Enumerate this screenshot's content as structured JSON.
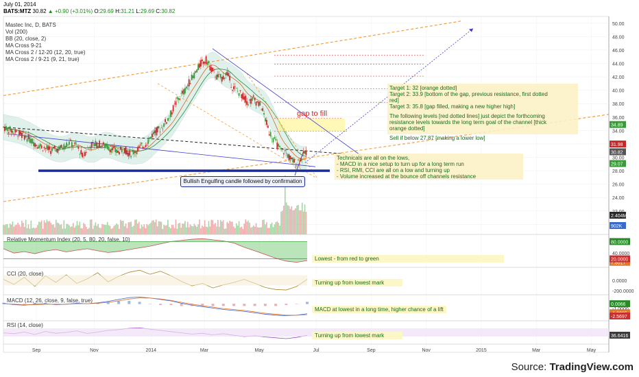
{
  "header": {
    "date": "July 01, 2014",
    "symbol": "BATS:MTZ",
    "last": "30.82",
    "change": "+0.90 (+3.01%)",
    "o_label": "O:",
    "o_value": "29.69",
    "h_label": "H:",
    "h_value": "31.21",
    "l_label": "L:",
    "l_value": "29.69",
    "c_label": "C:",
    "c_value": "30.82"
  },
  "indicators": [
    "Mastec Inc, D, BATS",
    "Vol (200)",
    "BB (20, close, 2)",
    "MA Cross 9-21",
    "MA Cross 2 / 12-20 (12, 20, true)",
    "MA Cross 2 / 9-21 (9, 21, true)"
  ],
  "targets_note": [
    "Target 1: 32 [orange dotted]",
    "Target 2: 33.9 [bottom of the gap, previous resistance, first dotted",
    "red]",
    "Target 3: 35.8 [gap filled, making a new higher high]",
    "",
    "The following levels [red dotted lines] just depict the forthcoming",
    "resistance levels towards the long term goal of the channel [thick",
    "orange dotted]",
    "",
    "Sell if below 27.87 [making a lower low]"
  ],
  "technicals_note": [
    "Technicals are all on the lows,",
    "- MACD in a nice setup to turn up for a long term run",
    "- RSI, RMI, CCI are all on a low and turning up",
    "- Volume increased at the bounce off channels resistance"
  ],
  "gap_label": "gap to fill",
  "bullish_label": "Bullish Engulfing candle followed by confirmation",
  "panels": {
    "rmi": "Relative Momentum Index (20, 5, 80, 20, false, 10)",
    "cci": "CCI (20, close)",
    "macd": "MACD (12, 26, close, 9, false, true)",
    "rsi": "RSI (14, close)"
  },
  "callouts": {
    "rmi": "Lowest - from red to green",
    "cci": "Turning up from lowest mark",
    "macd": "MACD at lowest in a long time, higher chance of a lift",
    "rsi": "Turning up from lowest mark"
  },
  "source": {
    "prefix": "Source: ",
    "brand": "TradingView.com"
  },
  "colors": {
    "up": "#3a9a3a",
    "down": "#c62828",
    "bb": "#a8d8c8",
    "channel": "#f29a2e",
    "resistance": "#e05050",
    "support": "#1a2a9a",
    "note_bg": "#fcf1c4",
    "rmi_fill": "#3ab53a"
  },
  "chart_data": [
    {
      "type": "candlestick",
      "title": "Mastec Inc, D, BATS",
      "x_ticks": [
        "Sep",
        "Nov",
        "2014",
        "Mar",
        "May",
        "Jul",
        "Sep",
        "Nov",
        "2015",
        "Mar",
        "May"
      ],
      "y_ticks": [
        "20.00",
        "22.00",
        "24.00",
        "26.00",
        "28.00",
        "30.00",
        "32.00",
        "34.00",
        "36.00",
        "38.00",
        "40.00",
        "42.00",
        "44.00",
        "46.00",
        "48.00",
        "50.00"
      ],
      "ylim": [
        18.5,
        51
      ],
      "price_tags": [
        {
          "label": "34.89",
          "color": "#3a9a3a"
        },
        {
          "label": "31.98",
          "color": "#c62828"
        },
        {
          "label": "30.82",
          "color": "#555555"
        },
        {
          "label": "29.07",
          "color": "#3a9a3a"
        }
      ],
      "volume_tags": [
        "2.404M",
        "902K"
      ],
      "key_levels": {
        "target_1": 32,
        "target_2": 33.9,
        "target_3": 35.8,
        "stop": 27.87,
        "resistance_levels": [
          38.2,
          40.2,
          42.1,
          43.9,
          45.2
        ]
      },
      "price_path": [
        [
          0,
          34.5
        ],
        [
          8,
          33.8
        ],
        [
          16,
          33.2
        ],
        [
          24,
          32.1
        ],
        [
          30,
          31.5
        ],
        [
          36,
          31.0
        ],
        [
          44,
          31.4
        ],
        [
          50,
          32.2
        ],
        [
          56,
          31.6
        ],
        [
          60,
          30.2
        ],
        [
          66,
          31.8
        ],
        [
          72,
          32.0
        ],
        [
          80,
          31.5
        ],
        [
          86,
          30.8
        ],
        [
          92,
          31.2
        ],
        [
          96,
          30.5
        ],
        [
          102,
          31.2
        ],
        [
          108,
          32.0
        ],
        [
          114,
          33.6
        ],
        [
          120,
          34.4
        ],
        [
          126,
          36.0
        ],
        [
          132,
          38.5
        ],
        [
          138,
          40.0
        ],
        [
          142,
          41.5
        ],
        [
          146,
          42.6
        ],
        [
          150,
          44.0
        ],
        [
          154,
          44.5
        ],
        [
          158,
          43.2
        ],
        [
          162,
          42.0
        ],
        [
          166,
          41.8
        ],
        [
          170,
          42.6
        ],
        [
          174,
          40.5
        ],
        [
          180,
          39.5
        ],
        [
          186,
          38.2
        ],
        [
          190,
          38.7
        ],
        [
          196,
          37.5
        ],
        [
          202,
          33.8
        ],
        [
          206,
          32.5
        ],
        [
          210,
          31.2
        ],
        [
          214,
          30.8
        ],
        [
          218,
          29.8
        ],
        [
          222,
          29.1
        ],
        [
          226,
          29.8
        ],
        [
          230,
          30.8
        ]
      ],
      "total_days": 460
    },
    {
      "type": "line",
      "title": "Relative Momentum Index (20, 5, 80, 20, false, 10)",
      "y_ticks": [
        "80.0000",
        "40.0000",
        "20.0000"
      ],
      "value_tags": [
        "80.0000",
        "7.8017",
        "20.0000"
      ],
      "ylim": [
        0,
        100
      ],
      "series": [
        {
          "name": "RMI",
          "values": [
            55,
            40,
            45,
            38,
            47,
            52,
            44,
            50,
            55,
            48,
            42,
            46,
            52,
            58,
            64,
            72,
            80,
            84,
            88,
            90,
            86,
            82,
            75,
            60,
            48,
            35,
            22,
            12,
            8,
            14
          ]
        }
      ]
    },
    {
      "type": "line",
      "title": "CCI (20, close)",
      "y_ticks": [
        "0.0000",
        "-200.0000"
      ],
      "ylim": [
        -230,
        230
      ],
      "series": [
        {
          "name": "CCI",
          "values": [
            20,
            -80,
            60,
            -120,
            90,
            -40,
            110,
            -60,
            30,
            150,
            -30,
            80,
            160,
            200,
            120,
            180,
            90,
            -20,
            -110,
            -60,
            -150,
            -90,
            -40,
            20,
            -60,
            -140,
            -180,
            -190,
            -120,
            20
          ]
        }
      ]
    },
    {
      "type": "line",
      "title": "MACD (12, 26, close, 9, false, true)",
      "y_ticks": [
        "0.0000",
        "-1.0000"
      ],
      "value_tags": [
        "0.0066",
        "-1.8865",
        "-2.5697"
      ],
      "ylim": [
        -3,
        1.6
      ],
      "series": [
        {
          "name": "MACD",
          "values": [
            0.1,
            -0.2,
            -0.3,
            -0.1,
            0.0,
            -0.2,
            -0.1,
            0.1,
            0.0,
            0.2,
            0.5,
            0.9,
            1.3,
            1.4,
            1.2,
            0.9,
            0.6,
            0.1,
            -0.3,
            -0.6,
            -0.9,
            -1.2,
            -1.4,
            -1.6,
            -1.9,
            -2.2,
            -2.4,
            -2.5,
            -2.4,
            -2.1
          ]
        },
        {
          "name": "Signal",
          "values": [
            0.0,
            -0.1,
            -0.2,
            -0.2,
            -0.1,
            -0.1,
            -0.1,
            0.0,
            0.0,
            0.1,
            0.3,
            0.6,
            1.0,
            1.2,
            1.2,
            1.0,
            0.7,
            0.3,
            -0.1,
            -0.4,
            -0.7,
            -1.0,
            -1.2,
            -1.4,
            -1.7,
            -2.0,
            -2.2,
            -2.4,
            -2.4,
            -2.3
          ]
        }
      ]
    },
    {
      "type": "line",
      "title": "RSI (14, close)",
      "value_tags": [
        "36.6416"
      ],
      "ylim": [
        0,
        100
      ],
      "series": [
        {
          "name": "RSI",
          "values": [
            48,
            44,
            52,
            40,
            55,
            46,
            50,
            58,
            45,
            52,
            60,
            64,
            70,
            72,
            66,
            60,
            54,
            48,
            42,
            46,
            38,
            44,
            36,
            30,
            34,
            28,
            24,
            20,
            26,
            36
          ]
        }
      ]
    }
  ]
}
